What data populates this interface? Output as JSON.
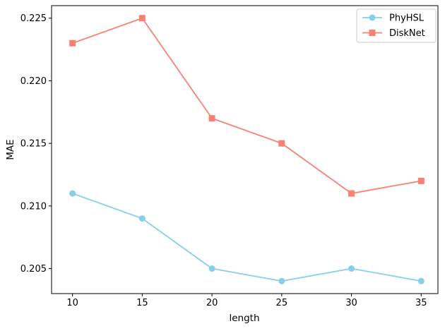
{
  "figure": {
    "background": "#ffffff",
    "text_color": "#000000"
  },
  "chart_data": {
    "type": "line",
    "title": "",
    "xlabel": "length",
    "ylabel": "MAE",
    "x": [
      10,
      15,
      20,
      25,
      30,
      35
    ],
    "series": [
      {
        "name": "PhyHSL",
        "values": [
          0.211,
          0.209,
          0.205,
          0.204,
          0.205,
          0.204
        ],
        "color": "#87CEEB",
        "marker": "circle"
      },
      {
        "name": "DiskNet",
        "values": [
          0.223,
          0.225,
          0.217,
          0.215,
          0.211,
          0.212
        ],
        "color": "#FA8072",
        "marker": "square"
      }
    ],
    "xlim": [
      8.5,
      36.2
    ],
    "ylim": [
      0.203,
      0.226
    ],
    "xticks": [
      10,
      15,
      20,
      25,
      30,
      35
    ],
    "xtick_labels": [
      "10",
      "15",
      "20",
      "25",
      "30",
      "35"
    ],
    "yticks": [
      0.205,
      0.21,
      0.215,
      0.22,
      0.225
    ],
    "ytick_labels": [
      "0.205",
      "0.210",
      "0.215",
      "0.220",
      "0.225"
    ],
    "grid": false,
    "legend": {
      "position": "upper-right",
      "entries": [
        "PhyHSL",
        "DiskNet"
      ],
      "border_color": "#cccccc",
      "background": "rgba(255,255,255,0.8)"
    },
    "axis_color": "#000000"
  }
}
